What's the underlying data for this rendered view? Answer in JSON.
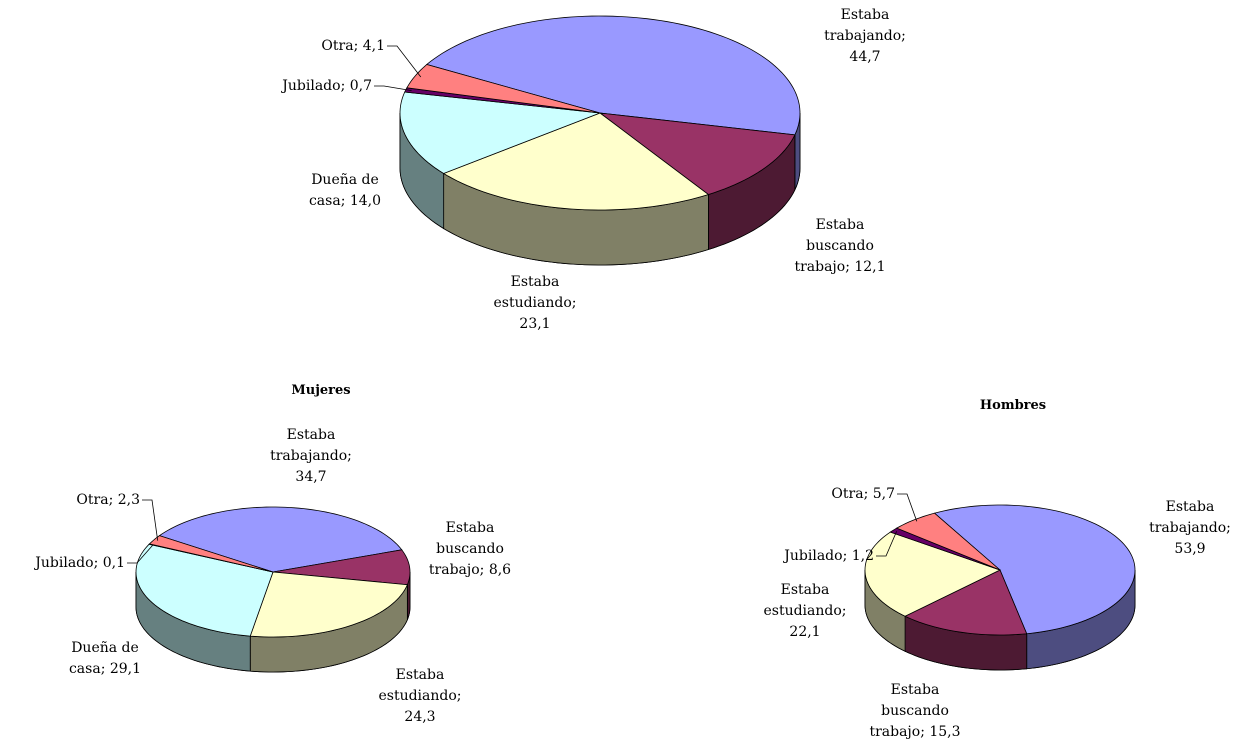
{
  "chart_data": [
    {
      "type": "pie",
      "values": [
        44.7,
        12.1,
        23.1,
        14.0,
        0.7,
        4.1
      ],
      "value_labels": [
        "Estaba trabajando; 44,7",
        "Estaba buscando trabajo; 12,1",
        "Estaba estudiando; 23,1",
        "Dueña de casa; 14,0",
        "Jubilado; 0,7",
        "Otra; 4,1"
      ],
      "colors": [
        "#9999ff",
        "#993366",
        "#ffffcc",
        "#ccffff",
        "#660066",
        "#ff8080"
      ]
    },
    {
      "type": "pie",
      "title": "Mujeres",
      "values": [
        34.7,
        8.6,
        24.3,
        29.1,
        0.1,
        2.3
      ],
      "value_labels": [
        "Estaba trabajando; 34,7",
        "Estaba buscando trabajo; 8,6",
        "Estaba estudiando; 24,3",
        "Dueña de casa; 29,1",
        "Jubilado; 0,1",
        "Otra; 2,3"
      ],
      "colors": [
        "#9999ff",
        "#993366",
        "#ffffcc",
        "#ccffff",
        "#660066",
        "#ff8080"
      ]
    },
    {
      "type": "pie",
      "title": "Hombres",
      "values": [
        53.9,
        15.3,
        22.1,
        1.2,
        5.7
      ],
      "value_labels": [
        "Estaba trabajando; 53,9",
        "Estaba buscando trabajo; 15,3",
        "Estaba estudiando; 22,1",
        "Jubilado; 1,2",
        "Otra; 5,7"
      ],
      "colors": [
        "#9999ff",
        "#993366",
        "#ffffcc",
        "#660066",
        "#ff8080"
      ]
    }
  ]
}
